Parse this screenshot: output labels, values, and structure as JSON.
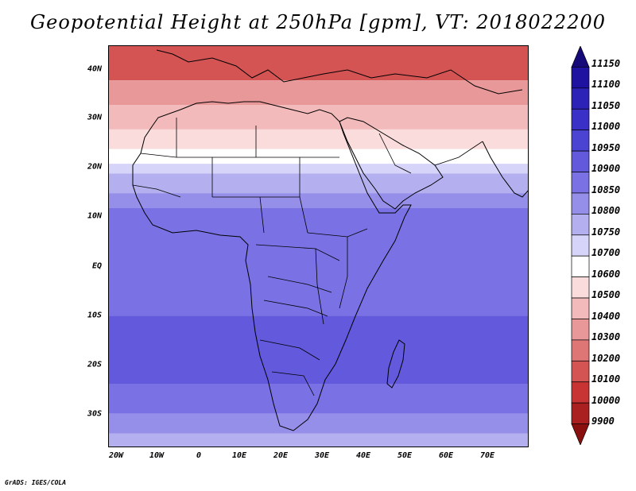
{
  "title": "Geopotential Height at 250hPa [gpm], VT: 2018022200",
  "credit": "GrADS: IGES/COLA",
  "y_ticks": [
    "40N",
    "30N",
    "20N",
    "10N",
    "EQ",
    "10S",
    "20S",
    "30S"
  ],
  "x_ticks": [
    "20W",
    "10W",
    "0",
    "10E",
    "20E",
    "30E",
    "40E",
    "50E",
    "60E",
    "70E"
  ],
  "colorbar": {
    "labels": [
      "11150",
      "11100",
      "11050",
      "11000",
      "10950",
      "10900",
      "10850",
      "10800",
      "10750",
      "10700",
      "10600",
      "10500",
      "10400",
      "10300",
      "10200",
      "10100",
      "10000",
      "9900"
    ],
    "colors": [
      "#16097a",
      "#1f12a0",
      "#2d22b8",
      "#3a30c8",
      "#4b44d2",
      "#6259dc",
      "#7a72e4",
      "#968fea",
      "#b4b0f0",
      "#d6d4f8",
      "#ffffff",
      "#fadcdc",
      "#f2baba",
      "#e89898",
      "#de7676",
      "#d45454",
      "#c83434",
      "#aa1f1f",
      "#8a1010"
    ]
  },
  "map": {
    "lon_range": [
      -22,
      80
    ],
    "lat_range": [
      -37,
      45
    ],
    "field_bands": [
      {
        "lat_from": 45,
        "lat_to": 38,
        "color": "#d45454"
      },
      {
        "lat_from": 38,
        "lat_to": 33,
        "color": "#e89898"
      },
      {
        "lat_from": 33,
        "lat_to": 28,
        "color": "#f2baba"
      },
      {
        "lat_from": 28,
        "lat_to": 24,
        "color": "#fadcdc"
      },
      {
        "lat_from": 24,
        "lat_to": 21,
        "color": "#ffffff"
      },
      {
        "lat_from": 21,
        "lat_to": 19,
        "color": "#d6d4f8"
      },
      {
        "lat_from": 19,
        "lat_to": 15,
        "color": "#b4b0f0"
      },
      {
        "lat_from": 15,
        "lat_to": 12,
        "color": "#968fea"
      },
      {
        "lat_from": 12,
        "lat_to": -10,
        "color": "#7a72e4"
      },
      {
        "lat_from": -10,
        "lat_to": -24,
        "color": "#6259dc"
      },
      {
        "lat_from": -24,
        "lat_to": -30,
        "color": "#7a72e4"
      },
      {
        "lat_from": -30,
        "lat_to": -34,
        "color": "#968fea"
      },
      {
        "lat_from": -34,
        "lat_to": -37,
        "color": "#b4b0f0"
      }
    ]
  }
}
